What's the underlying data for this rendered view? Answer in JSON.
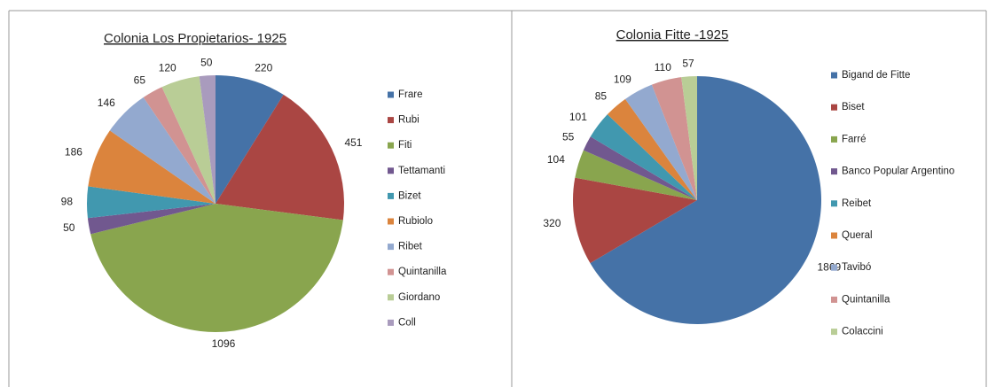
{
  "chart_data": [
    {
      "type": "pie",
      "title": "Colonia Los Propietarios- 1925",
      "categories": [
        "Frare",
        "Rubi",
        "Fiti",
        "Tettamanti",
        "Bizet",
        "Rubiolo",
        "Ribet",
        "Quintanilla",
        "Giordano",
        "Coll"
      ],
      "values": [
        220,
        451,
        1096,
        50,
        98,
        186,
        146,
        65,
        120,
        50
      ],
      "colors": [
        "#4572A7",
        "#AA4643",
        "#89A54E",
        "#71588F",
        "#4198AF",
        "#DB843D",
        "#93A9CF",
        "#D19392",
        "#B9CD96",
        "#A99BBD"
      ]
    },
    {
      "type": "pie",
      "title": "Colonia Fitte -1925",
      "categories": [
        "Bigand de Fitte",
        "Biset",
        "Farré",
        "Banco Popular Argentino",
        "Reibet",
        "Queral",
        "Tavibó",
        "Quintanilla",
        "Colaccini"
      ],
      "values": [
        1869,
        320,
        104,
        55,
        101,
        85,
        109,
        110,
        57
      ],
      "colors": [
        "#4572A7",
        "#AA4643",
        "#89A54E",
        "#71588F",
        "#4198AF",
        "#DB843D",
        "#93A9CF",
        "#D19392",
        "#B9CD96"
      ]
    }
  ]
}
